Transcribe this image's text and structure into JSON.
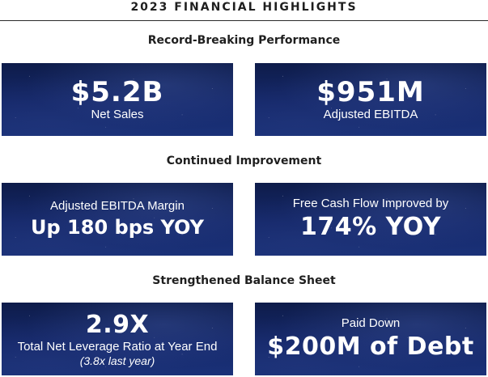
{
  "title": "2023 FINANCIAL HIGHLIGHTS",
  "sections": [
    {
      "heading": "Record-Breaking Performance",
      "cards": [
        {
          "value": "$5.2B",
          "label": "Net Sales"
        },
        {
          "value": "$951M",
          "label": "Adjusted EBITDA"
        }
      ]
    },
    {
      "heading": "Continued Improvement",
      "cards": [
        {
          "label": "Adjusted EBITDA Margin",
          "value": "Up 180 bps YOY"
        },
        {
          "label": "Free Cash Flow Improved by",
          "value": "174% YOY"
        }
      ]
    },
    {
      "heading": "Strengthened Balance Sheet",
      "cards": [
        {
          "value": "2.9X",
          "label": "Total Net Leverage Ratio at Year End",
          "note": "(3.8x last year)"
        },
        {
          "label": "Paid Down",
          "value": "$200M of Debt"
        }
      ]
    }
  ],
  "colors": {
    "card_dark": "#0e1c4a",
    "card_light": "#1a3178",
    "heading": "#1f1f1f"
  }
}
